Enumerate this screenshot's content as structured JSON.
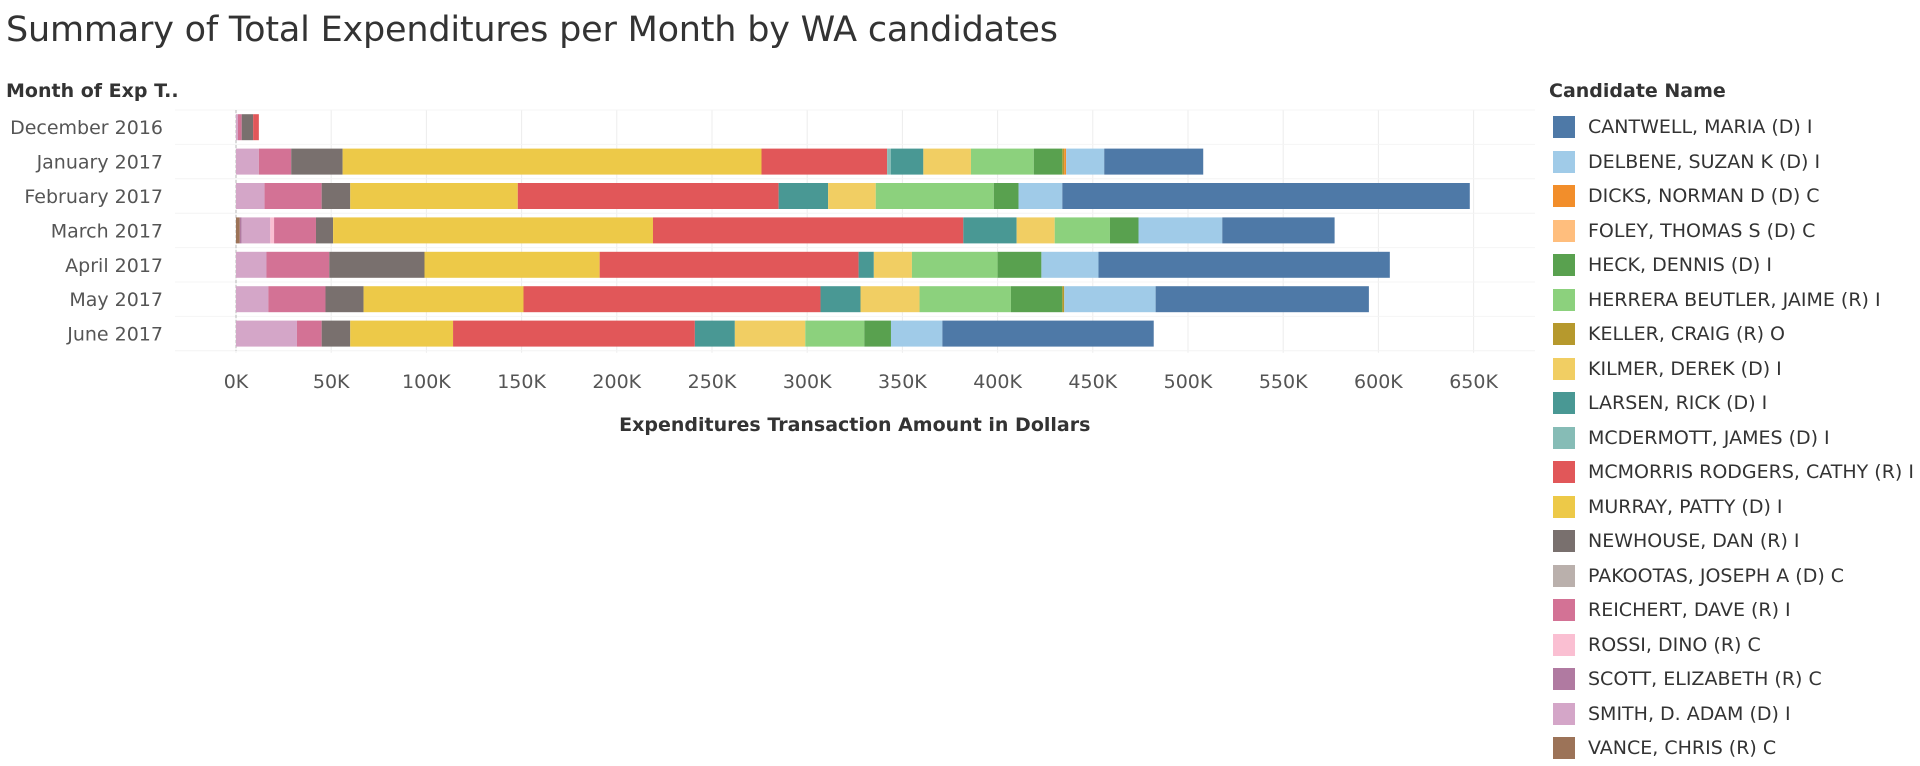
{
  "chart_data": {
    "type": "bar",
    "orientation": "horizontal",
    "stacked": true,
    "title": "Summary of Total Expenditures per Month by WA candidates",
    "row_header": "Month of Exp T..",
    "xlabel": "Expenditures Transaction Amount in Dollars",
    "xlim": [
      0,
      680000
    ],
    "x_ticks": [
      0,
      50000,
      100000,
      150000,
      200000,
      250000,
      300000,
      350000,
      400000,
      450000,
      500000,
      550000,
      600000,
      650000
    ],
    "x_tick_labels": [
      "0K",
      "50K",
      "100K",
      "150K",
      "200K",
      "250K",
      "300K",
      "350K",
      "400K",
      "450K",
      "500K",
      "550K",
      "600K",
      "650K"
    ],
    "grid": true,
    "legend_title": "Candidate Name",
    "legend_position": "right",
    "categories": [
      "December 2016",
      "January 2017",
      "February 2017",
      "March 2017",
      "April 2017",
      "May 2017",
      "June 2017"
    ],
    "series": [
      {
        "name": "VANCE, CHRIS (R) C",
        "color": "#9c7358",
        "values": [
          0,
          0,
          0,
          2000,
          0,
          0,
          0
        ]
      },
      {
        "name": "SCOTT, ELIZABETH (R) C",
        "color": "#b07aa1",
        "values": [
          0,
          0,
          0,
          1000,
          0,
          0,
          0
        ]
      },
      {
        "name": "SMITH, D. ADAM (D) I",
        "color": "#d4a6c8",
        "values": [
          1000,
          12000,
          15000,
          15000,
          16000,
          17000,
          32000
        ]
      },
      {
        "name": "ROSSI, DINO (R) C",
        "color": "#fabfd2",
        "values": [
          0,
          0,
          0,
          2000,
          0,
          0,
          0
        ]
      },
      {
        "name": "REICHERT, DAVE (R) I",
        "color": "#d37295",
        "values": [
          2000,
          17000,
          30000,
          22000,
          33000,
          30000,
          13000
        ]
      },
      {
        "name": "PAKOOTAS, JOSEPH A (D) C",
        "color": "#bab0ac",
        "values": [
          0,
          0,
          0,
          0,
          0,
          0,
          0
        ]
      },
      {
        "name": "NEWHOUSE, DAN (R) I",
        "color": "#79706e",
        "values": [
          6000,
          27000,
          15000,
          9000,
          50000,
          20000,
          15000
        ]
      },
      {
        "name": "MURRAY, PATTY (D) I",
        "color": "#edc948",
        "values": [
          0,
          220000,
          88000,
          168000,
          92000,
          84000,
          54000
        ]
      },
      {
        "name": "MCMORRIS RODGERS, CATHY (R) I",
        "color": "#e15759",
        "values": [
          3000,
          66000,
          137000,
          163000,
          136000,
          156000,
          127000
        ]
      },
      {
        "name": "MCDERMOTT, JAMES (D) I",
        "color": "#86bcb6",
        "values": [
          0,
          2000,
          0,
          0,
          0,
          0,
          0
        ]
      },
      {
        "name": "LARSEN, RICK (D) I",
        "color": "#499894",
        "values": [
          0,
          17000,
          26000,
          28000,
          8000,
          21000,
          21000
        ]
      },
      {
        "name": "KILMER, DEREK (D) I",
        "color": "#f1ce63",
        "values": [
          0,
          25000,
          25000,
          20000,
          20000,
          31000,
          37000
        ]
      },
      {
        "name": "HERRERA BEUTLER, JAIME (R) I",
        "color": "#8cd17d",
        "values": [
          0,
          33000,
          62000,
          29000,
          45000,
          48000,
          31000
        ]
      },
      {
        "name": "HECK, DENNIS (D) I",
        "color": "#59a14f",
        "values": [
          0,
          15000,
          13000,
          15000,
          23000,
          27000,
          14000
        ]
      },
      {
        "name": "KELLER, CRAIG (R) O",
        "color": "#b6992d",
        "values": [
          0,
          1000,
          0,
          0,
          0,
          1000,
          0
        ]
      },
      {
        "name": "FOLEY, THOMAS S (D) C",
        "color": "#ffbe7d",
        "values": [
          0,
          0,
          0,
          0,
          0,
          0,
          0
        ]
      },
      {
        "name": "DICKS, NORMAN D (D) C",
        "color": "#f28e2b",
        "values": [
          0,
          1000,
          0,
          0,
          0,
          0,
          0
        ]
      },
      {
        "name": "DELBENE, SUZAN K (D) I",
        "color": "#a0cbe8",
        "values": [
          0,
          20000,
          23000,
          44000,
          30000,
          48000,
          27000
        ]
      },
      {
        "name": "CANTWELL, MARIA (D) I",
        "color": "#4e79a7",
        "values": [
          0,
          52000,
          214000,
          59000,
          153000,
          112000,
          111000
        ]
      }
    ],
    "legend_items": [
      {
        "name": "CANTWELL, MARIA (D) I",
        "color": "#4e79a7"
      },
      {
        "name": "DELBENE, SUZAN K (D) I",
        "color": "#a0cbe8"
      },
      {
        "name": "DICKS, NORMAN D (D) C",
        "color": "#f28e2b"
      },
      {
        "name": "FOLEY, THOMAS S (D) C",
        "color": "#ffbe7d"
      },
      {
        "name": "HECK, DENNIS (D) I",
        "color": "#59a14f"
      },
      {
        "name": "HERRERA BEUTLER, JAIME (R) I",
        "color": "#8cd17d"
      },
      {
        "name": "KELLER, CRAIG (R) O",
        "color": "#b6992d"
      },
      {
        "name": "KILMER, DEREK (D) I",
        "color": "#f1ce63"
      },
      {
        "name": "LARSEN, RICK (D) I",
        "color": "#499894"
      },
      {
        "name": "MCDERMOTT, JAMES (D) I",
        "color": "#86bcb6"
      },
      {
        "name": "MCMORRIS RODGERS, CATHY (R) I",
        "color": "#e15759"
      },
      {
        "name": "MURRAY, PATTY (D) I",
        "color": "#edc948"
      },
      {
        "name": "NEWHOUSE, DAN (R) I",
        "color": "#79706e"
      },
      {
        "name": "PAKOOTAS, JOSEPH A (D) C",
        "color": "#bab0ac"
      },
      {
        "name": "REICHERT, DAVE (R) I",
        "color": "#d37295"
      },
      {
        "name": "ROSSI, DINO (R) C",
        "color": "#fabfd2"
      },
      {
        "name": "SCOTT, ELIZABETH (R) C",
        "color": "#b07aa1"
      },
      {
        "name": "SMITH, D. ADAM (D) I",
        "color": "#d4a6c8"
      },
      {
        "name": "VANCE, CHRIS (R) C",
        "color": "#9c7358"
      }
    ]
  }
}
